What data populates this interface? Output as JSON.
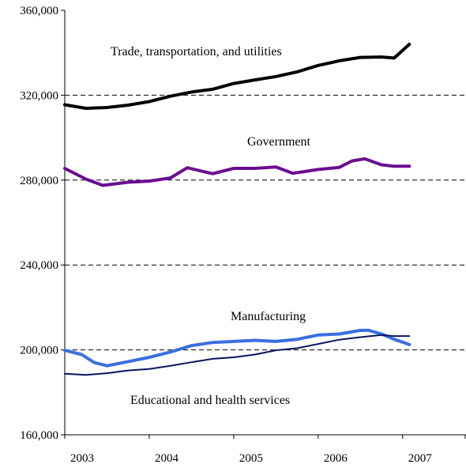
{
  "chart_data": {
    "type": "line",
    "title": "",
    "xlabel": "",
    "ylabel": "",
    "ylim": [
      160000,
      360000
    ],
    "y_ticks": [
      160000,
      200000,
      240000,
      280000,
      320000,
      360000
    ],
    "y_tick_labels": [
      "160,000",
      "200,000",
      "240,000",
      "280,000",
      "320,000",
      "360,000"
    ],
    "x_ticks": [
      2003,
      2004,
      2005,
      2006,
      2007
    ],
    "x_tick_labels": [
      "2003",
      "2004",
      "2005",
      "2006",
      "2007"
    ],
    "xlim": [
      2003.0,
      2007.75
    ],
    "grid": "dashed horizontal at 200,000, 240,000, 280,000 and 320,000",
    "legend": "none; series labeled directly on the chart",
    "series": [
      {
        "name": "Trade, transportation, and utilities",
        "color": "#000000",
        "x": [
          2003.0,
          2003.25,
          2003.5,
          2003.75,
          2004.0,
          2004.25,
          2004.5,
          2004.75,
          2005.0,
          2005.25,
          2005.5,
          2005.75,
          2006.0,
          2006.25,
          2006.5,
          2006.75,
          2006.9,
          2007.08
        ],
        "values": [
          315500,
          313800,
          314200,
          315300,
          317000,
          319500,
          321500,
          322800,
          325500,
          327200,
          328800,
          331000,
          334000,
          336200,
          337800,
          338000,
          337500,
          344000
        ]
      },
      {
        "name": "Government",
        "color": "#6a0d91",
        "x": [
          2003.0,
          2003.25,
          2003.45,
          2003.75,
          2004.0,
          2004.25,
          2004.45,
          2004.75,
          2005.0,
          2005.25,
          2005.5,
          2005.7,
          2006.0,
          2006.25,
          2006.4,
          2006.55,
          2006.75,
          2006.9,
          2007.08
        ],
        "values": [
          285500,
          280500,
          277500,
          279000,
          279500,
          281000,
          285800,
          283000,
          285500,
          285500,
          286200,
          283200,
          285000,
          286000,
          289000,
          290000,
          287200,
          286500,
          286500
        ]
      },
      {
        "name": "Manufacturing",
        "color": "#3a6fe0",
        "x": [
          2003.0,
          2003.2,
          2003.35,
          2003.5,
          2003.75,
          2004.0,
          2004.25,
          2004.5,
          2004.75,
          2005.0,
          2005.25,
          2005.5,
          2005.75,
          2006.0,
          2006.25,
          2006.5,
          2006.6,
          2006.75,
          2006.9,
          2007.08
        ],
        "values": [
          199800,
          197800,
          194000,
          192500,
          194500,
          196500,
          199000,
          202000,
          203500,
          204000,
          204500,
          204000,
          205000,
          207000,
          207500,
          209200,
          209200,
          207500,
          205000,
          202500
        ]
      },
      {
        "name": "Educational and health services",
        "color": "#0a1560",
        "x": [
          2003.0,
          2003.25,
          2003.5,
          2003.75,
          2004.0,
          2004.25,
          2004.5,
          2004.75,
          2005.0,
          2005.25,
          2005.5,
          2005.75,
          2006.0,
          2006.25,
          2006.5,
          2006.75,
          2006.9,
          2007.08
        ],
        "values": [
          188800,
          188200,
          189000,
          190300,
          191000,
          192500,
          194200,
          195800,
          196500,
          197800,
          199800,
          200800,
          202800,
          204800,
          206000,
          207000,
          206500,
          206500
        ]
      }
    ],
    "annotations": [
      "Trade, transportation, and utilities",
      "Government",
      "Manufacturing",
      "Educational and health services"
    ]
  }
}
